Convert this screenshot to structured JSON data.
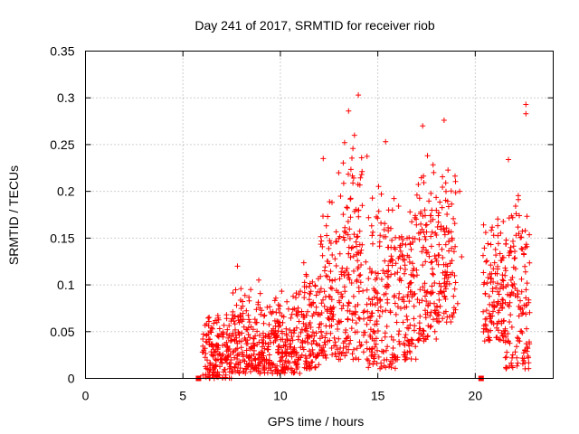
{
  "chart_data": {
    "type": "scatter",
    "title": "Day 241 of 2017, SRMTID for receiver riob",
    "xlabel": "GPS time / hours",
    "ylabel": "SRMTID / TECUs",
    "xlim": [
      0,
      24
    ],
    "ylim": [
      0,
      0.35
    ],
    "xticks": [
      0,
      5,
      10,
      15,
      20
    ],
    "xtick_labels": [
      "0",
      "5",
      "10",
      "15",
      "20"
    ],
    "yticks": [
      0,
      0.05,
      0.1,
      0.15,
      0.2,
      0.25,
      0.3,
      0.35
    ],
    "ytick_labels": [
      "0",
      "0.05",
      "0.1",
      "0.15",
      "0.2",
      "0.25",
      "0.3",
      "0.35"
    ],
    "grid": true,
    "marker": "+",
    "color": "#ff0000",
    "square_markers": [
      {
        "x": 5.8,
        "y": 0
      },
      {
        "x": 20.3,
        "y": 0
      }
    ],
    "envelope": [
      {
        "t0": 6.0,
        "t1": 7.5,
        "lo": 0.0,
        "hi": 0.075
      },
      {
        "t0": 7.5,
        "t1": 9.0,
        "lo": 0.005,
        "hi": 0.11
      },
      {
        "t0": 9.0,
        "t1": 10.0,
        "lo": 0.005,
        "hi": 0.09
      },
      {
        "t0": 10.0,
        "t1": 11.0,
        "lo": 0.005,
        "hi": 0.1
      },
      {
        "t0": 11.0,
        "t1": 12.0,
        "lo": 0.01,
        "hi": 0.14
      },
      {
        "t0": 12.0,
        "t1": 13.0,
        "lo": 0.02,
        "hi": 0.23
      },
      {
        "t0": 13.0,
        "t1": 14.5,
        "lo": 0.02,
        "hi": 0.27
      },
      {
        "t0": 14.5,
        "t1": 16.0,
        "lo": 0.01,
        "hi": 0.24
      },
      {
        "t0": 16.0,
        "t1": 17.0,
        "lo": 0.02,
        "hi": 0.2
      },
      {
        "t0": 17.0,
        "t1": 18.0,
        "lo": 0.04,
        "hi": 0.26
      },
      {
        "t0": 18.0,
        "t1": 19.0,
        "lo": 0.06,
        "hi": 0.24
      },
      {
        "t0": 19.0,
        "t1": 20.3,
        "lo": 0.0,
        "hi": 0.0
      },
      {
        "t0": 20.4,
        "t1": 21.5,
        "lo": 0.04,
        "hi": 0.18
      },
      {
        "t0": 21.5,
        "t1": 22.8,
        "lo": 0.01,
        "hi": 0.22
      }
    ],
    "outliers": [
      {
        "x": 14.0,
        "y": 0.303
      },
      {
        "x": 13.5,
        "y": 0.286
      },
      {
        "x": 22.6,
        "y": 0.293
      },
      {
        "x": 22.6,
        "y": 0.283
      },
      {
        "x": 17.3,
        "y": 0.27
      },
      {
        "x": 18.4,
        "y": 0.276
      },
      {
        "x": 13.8,
        "y": 0.26
      },
      {
        "x": 15.4,
        "y": 0.253
      },
      {
        "x": 12.2,
        "y": 0.235
      },
      {
        "x": 21.7,
        "y": 0.234
      },
      {
        "x": 7.8,
        "y": 0.12
      },
      {
        "x": 19.2,
        "y": 0.2
      },
      {
        "x": 19.3,
        "y": 0.13
      },
      {
        "x": 19.1,
        "y": 0.08
      },
      {
        "x": 18.9,
        "y": 0.07
      }
    ]
  }
}
